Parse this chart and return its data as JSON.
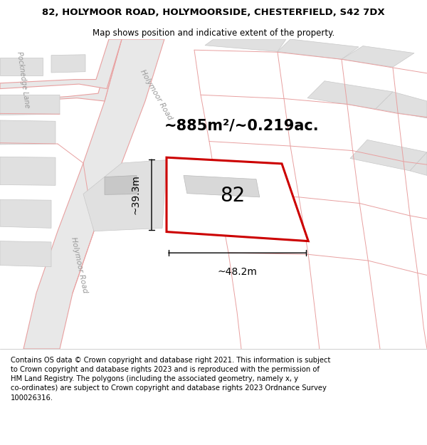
{
  "title": "82, HOLYMOOR ROAD, HOLYMOORSIDE, CHESTERFIELD, S42 7DX",
  "subtitle": "Map shows position and indicative extent of the property.",
  "footer": "Contains OS data © Crown copyright and database right 2021. This information is subject\nto Crown copyright and database rights 2023 and is reproduced with the permission of\nHM Land Registry. The polygons (including the associated geometry, namely x, y\nco-ordinates) are subject to Crown copyright and database rights 2023 Ordnance Survey\n100026316.",
  "area_label": "~885m²/~0.219ac.",
  "number_label": "82",
  "dim_vertical": "~39.3m",
  "dim_horizontal": "~48.2m",
  "road_label_upper": "Holymoor Road",
  "road_label_lower": "Holymoor Road",
  "road_label_left": "Pocknedge Lane",
  "bg_color": "#ffffff",
  "road_fill": "#e8e8e8",
  "road_edge": "#e8a0a0",
  "plot_fill": "#e0e0e0",
  "plot_edge": "#c8c8c8",
  "highlight_edge": "#cc0000",
  "dim_line_color": "#000000",
  "text_color": "#000000",
  "road_text_color": "#999999",
  "title_fontsize": 9.5,
  "subtitle_fontsize": 8.5,
  "footer_fontsize": 7.2,
  "area_fontsize": 15,
  "number_fontsize": 20,
  "dim_fontsize": 10,
  "road_fontsize": 7.5
}
